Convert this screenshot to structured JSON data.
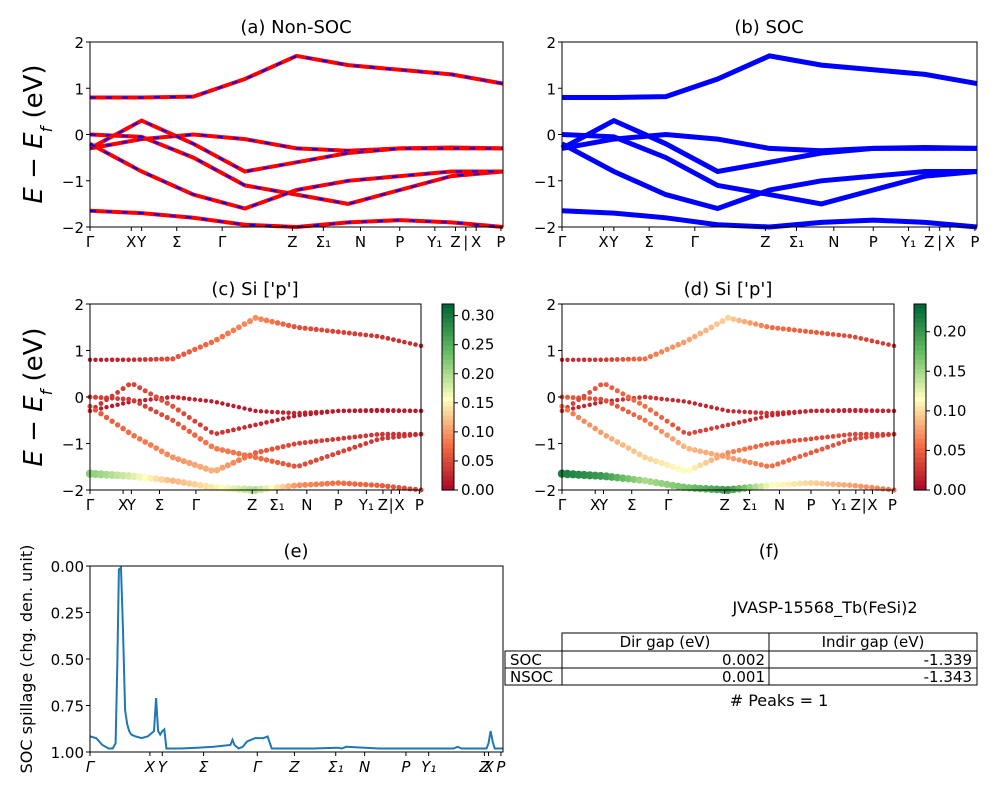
{
  "chart_data": [
    {
      "id": "a",
      "type": "line",
      "title": "(a) Non-SOC",
      "ylabel_main": "E − E",
      "ylabel_sub": "f",
      "ylabel_unit": " (eV)",
      "ylim": [
        -2,
        2
      ],
      "yticks": [
        "2",
        "1",
        "0",
        "−1",
        "−2"
      ],
      "kpoint_labels": [
        "Γ",
        "X",
        "Y",
        "Σ",
        "Γ",
        "Z",
        "Σ₁",
        "N",
        "P",
        "Y₁",
        "Z",
        "|",
        "X",
        "P"
      ],
      "series": [
        {
          "style": "red line with blue dashes",
          "color": "#ff0000",
          "dash_color": "#0000ff",
          "bands": [
            [
              -1.65,
              -1.7,
              -1.8,
              -1.95,
              -2.0,
              -1.9,
              -1.85,
              -1.9,
              -2.0
            ],
            [
              -0.3,
              -0.1,
              0.0,
              -0.1,
              -0.3,
              -0.35,
              -0.3,
              -0.28,
              -0.3
            ],
            [
              0.0,
              -0.05,
              -0.5,
              -1.1,
              -1.3,
              -1.5,
              -1.2,
              -0.9,
              -0.8
            ],
            [
              0.8,
              0.8,
              0.82,
              1.2,
              1.7,
              1.5,
              1.4,
              1.3,
              1.1
            ],
            [
              -0.3,
              0.3,
              -0.2,
              -0.8,
              -0.6,
              -0.4,
              -0.3,
              -0.3,
              -0.3
            ],
            [
              -0.2,
              -0.8,
              -1.3,
              -1.6,
              -1.2,
              -1.0,
              -0.9,
              -0.8,
              -0.8
            ]
          ]
        }
      ]
    },
    {
      "id": "b",
      "type": "line",
      "title": "(b) SOC",
      "ylim": [
        -2,
        2
      ],
      "yticks": [
        "2",
        "1",
        "0",
        "−1",
        "−2"
      ],
      "kpoint_labels": [
        "Γ",
        "X",
        "Y",
        "Σ",
        "Γ",
        "Z",
        "Σ₁",
        "N",
        "P",
        "Y₁",
        "Z",
        "|",
        "X",
        "P"
      ],
      "series": [
        {
          "style": "blue thick line",
          "color": "#0000ff",
          "bands": [
            [
              -1.65,
              -1.7,
              -1.8,
              -1.95,
              -2.0,
              -1.9,
              -1.85,
              -1.9,
              -2.0
            ],
            [
              -0.3,
              -0.1,
              0.0,
              -0.1,
              -0.3,
              -0.35,
              -0.3,
              -0.28,
              -0.3
            ],
            [
              0.0,
              -0.05,
              -0.5,
              -1.1,
              -1.3,
              -1.5,
              -1.2,
              -0.9,
              -0.8
            ],
            [
              0.8,
              0.8,
              0.82,
              1.2,
              1.7,
              1.5,
              1.4,
              1.3,
              1.1
            ],
            [
              -0.3,
              0.3,
              -0.2,
              -0.8,
              -0.6,
              -0.4,
              -0.3,
              -0.3,
              -0.3
            ],
            [
              -0.2,
              -0.8,
              -1.3,
              -1.6,
              -1.2,
              -1.0,
              -0.9,
              -0.8,
              -0.8
            ]
          ]
        }
      ]
    },
    {
      "id": "c",
      "type": "scatter",
      "title": "(c)  Si ['p']",
      "ylabel_main": "E − E",
      "ylabel_sub": "f",
      "ylabel_unit": " (eV)",
      "ylim": [
        -2,
        2
      ],
      "yticks": [
        "2",
        "1",
        "0",
        "−1",
        "−2"
      ],
      "kpoint_labels": [
        "Γ",
        "X",
        "Y",
        "Σ",
        "Γ",
        "Z",
        "Σ₁",
        "N",
        "P",
        "Y₁",
        "Z",
        "|",
        "X",
        "P"
      ],
      "colorbar": {
        "cmap": "RdYlGn",
        "min": 0.0,
        "max": 0.32,
        "ticks": [
          "0.00",
          "0.05",
          "0.10",
          "0.15",
          "0.20",
          "0.25",
          "0.30"
        ]
      },
      "bands": [
        [
          -1.65,
          -1.7,
          -1.8,
          -1.95,
          -2.0,
          -1.9,
          -1.85,
          -1.9,
          -2.0
        ],
        [
          -0.3,
          -0.1,
          0.0,
          -0.1,
          -0.3,
          -0.35,
          -0.3,
          -0.28,
          -0.3
        ],
        [
          0.0,
          -0.05,
          -0.5,
          -1.1,
          -1.3,
          -1.5,
          -1.2,
          -0.9,
          -0.8
        ],
        [
          0.8,
          0.8,
          0.82,
          1.2,
          1.7,
          1.5,
          1.4,
          1.3,
          1.1
        ],
        [
          -0.3,
          0.3,
          -0.2,
          -0.8,
          -0.6,
          -0.4,
          -0.3,
          -0.3,
          -0.3
        ],
        [
          -0.2,
          -0.8,
          -1.3,
          -1.6,
          -1.2,
          -1.0,
          -0.9,
          -0.8,
          -0.8
        ]
      ],
      "weights": [
        [
          0.22,
          0.18,
          0.12,
          0.15,
          0.2,
          0.1,
          0.08,
          0.07,
          0.05
        ],
        [
          0.02,
          0.02,
          0.03,
          0.02,
          0.02,
          0.03,
          0.02,
          0.02,
          0.02
        ],
        [
          0.05,
          0.04,
          0.06,
          0.09,
          0.08,
          0.06,
          0.05,
          0.04,
          0.04
        ],
        [
          0.02,
          0.03,
          0.06,
          0.08,
          0.1,
          0.06,
          0.05,
          0.04,
          0.03
        ],
        [
          0.03,
          0.05,
          0.06,
          0.04,
          0.03,
          0.02,
          0.02,
          0.02,
          0.02
        ],
        [
          0.06,
          0.08,
          0.1,
          0.12,
          0.07,
          0.05,
          0.04,
          0.04,
          0.03
        ]
      ]
    },
    {
      "id": "d",
      "type": "scatter",
      "title": "(d) Si ['p']",
      "ylim": [
        -2,
        2
      ],
      "yticks": [
        "2",
        "1",
        "0",
        "−1",
        "−2"
      ],
      "kpoint_labels": [
        "Γ",
        "X",
        "Y",
        "Σ",
        "Γ",
        "Z",
        "Σ₁",
        "N",
        "P",
        "Y₁",
        "Z",
        "|",
        "X",
        "P"
      ],
      "colorbar": {
        "cmap": "RdYlGn",
        "min": 0.0,
        "max": 0.235,
        "ticks": [
          "0.00",
          "0.05",
          "0.10",
          "0.15",
          "0.20"
        ]
      },
      "bands": [
        [
          -1.65,
          -1.7,
          -1.8,
          -1.95,
          -2.0,
          -1.9,
          -1.85,
          -1.9,
          -2.0
        ],
        [
          -0.3,
          -0.1,
          0.0,
          -0.1,
          -0.3,
          -0.35,
          -0.3,
          -0.28,
          -0.3
        ],
        [
          0.0,
          -0.05,
          -0.5,
          -1.1,
          -1.3,
          -1.5,
          -1.2,
          -0.9,
          -0.8
        ],
        [
          0.8,
          0.8,
          0.82,
          1.2,
          1.7,
          1.5,
          1.4,
          1.3,
          1.1
        ],
        [
          -0.3,
          0.3,
          -0.2,
          -0.8,
          -0.6,
          -0.4,
          -0.3,
          -0.3,
          -0.3
        ],
        [
          -0.2,
          -0.8,
          -1.3,
          -1.6,
          -1.2,
          -1.0,
          -0.9,
          -0.8,
          -0.8
        ]
      ],
      "weights": [
        [
          0.22,
          0.2,
          0.15,
          0.17,
          0.2,
          0.12,
          0.1,
          0.08,
          0.06
        ],
        [
          0.02,
          0.02,
          0.03,
          0.02,
          0.02,
          0.03,
          0.02,
          0.02,
          0.02
        ],
        [
          0.05,
          0.04,
          0.06,
          0.09,
          0.08,
          0.06,
          0.05,
          0.04,
          0.04
        ],
        [
          0.02,
          0.03,
          0.06,
          0.08,
          0.1,
          0.06,
          0.05,
          0.04,
          0.03
        ],
        [
          0.03,
          0.05,
          0.06,
          0.04,
          0.03,
          0.02,
          0.02,
          0.02,
          0.02
        ],
        [
          0.06,
          0.08,
          0.1,
          0.12,
          0.07,
          0.05,
          0.04,
          0.04,
          0.03
        ]
      ]
    },
    {
      "id": "e",
      "type": "line",
      "title": "(e)",
      "ylabel": "SOC spillage (chg. den. unit)",
      "ylim": [
        0,
        1.07
      ],
      "yticks": [
        "0.00",
        "0.25",
        "0.50",
        "0.75",
        "1.00"
      ],
      "kpoint_labels": [
        "Γ",
        "X",
        "Y",
        "Σ",
        "Γ",
        "Z",
        "Σ₁",
        "N",
        "P",
        "Y₁",
        "Z",
        "X",
        "P"
      ],
      "x": [
        0,
        0.015,
        0.03,
        0.045,
        0.055,
        0.062,
        0.066,
        0.07,
        0.075,
        0.08,
        0.085,
        0.09,
        0.095,
        0.1,
        0.11,
        0.125,
        0.14,
        0.155,
        0.16,
        0.165,
        0.17,
        0.175,
        0.18,
        0.185,
        0.19,
        0.2,
        0.22,
        0.26,
        0.3,
        0.34,
        0.345,
        0.35,
        0.36,
        0.37,
        0.38,
        0.4,
        0.42,
        0.43,
        0.44,
        0.5,
        0.54,
        0.6,
        0.61,
        0.62,
        0.7,
        0.72,
        0.8,
        0.85,
        0.88,
        0.89,
        0.9,
        0.95,
        0.96,
        0.965,
        0.97,
        0.975,
        0.98,
        0.99,
        1.0
      ],
      "y": [
        0.09,
        0.08,
        0.04,
        0.02,
        0.02,
        0.05,
        0.5,
        1.05,
        1.06,
        0.7,
        0.24,
        0.16,
        0.12,
        0.1,
        0.09,
        0.08,
        0.09,
        0.12,
        0.31,
        0.12,
        0.1,
        0.12,
        0.13,
        0.02,
        0.02,
        0.02,
        0.02,
        0.025,
        0.03,
        0.04,
        0.07,
        0.04,
        0.02,
        0.03,
        0.06,
        0.08,
        0.08,
        0.09,
        0.02,
        0.02,
        0.02,
        0.025,
        0.02,
        0.03,
        0.02,
        0.02,
        0.02,
        0.02,
        0.02,
        0.03,
        0.02,
        0.02,
        0.02,
        0.05,
        0.12,
        0.06,
        0.02,
        0.02,
        0.02
      ],
      "color": "#1f77b4"
    }
  ],
  "panel_f": {
    "title": "(f)",
    "material": "JVASP-15568_Tb(FeSi)2",
    "table": {
      "headers": [
        "",
        "Dir gap (eV)",
        "Indir gap (eV)"
      ],
      "rows": [
        {
          "label": "SOC",
          "dir": "0.002",
          "indir": "-1.339"
        },
        {
          "label": "NSOC",
          "dir": "0.001",
          "indir": "-1.343"
        }
      ]
    },
    "peaks": "# Peaks = 1"
  }
}
